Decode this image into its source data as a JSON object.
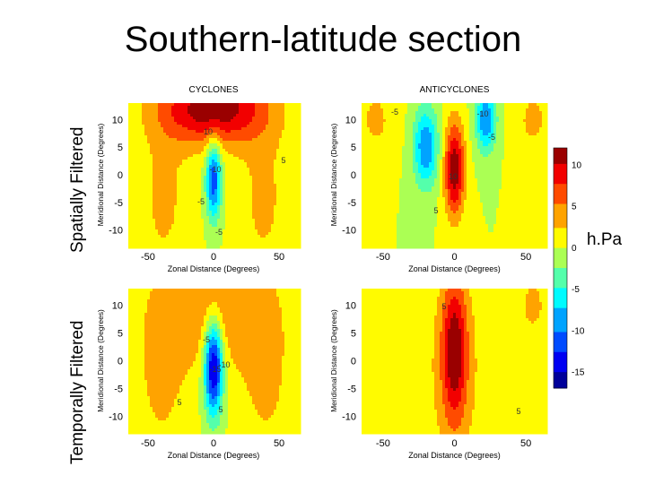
{
  "slide": {
    "title": "Southern-latitude section",
    "row_labels": [
      "Spatially Filtered",
      "Temporally Filtered"
    ],
    "unit": "h.Pa"
  },
  "chart_data": {
    "type": "heatmap",
    "title": "Southern-latitude section",
    "colorbar": {
      "ticks": [
        10,
        5,
        0,
        -5,
        -10,
        -15
      ],
      "range": [
        -17,
        12
      ],
      "colormap": "jet",
      "label": "h.Pa"
    },
    "panels": [
      {
        "row": "Spatially Filtered",
        "title": "CYCLONES",
        "xlabel": "Zonal Distance (Degrees)",
        "ylabel": "Meridional Distance (Degrees)",
        "xticks": [
          -50,
          0,
          50
        ],
        "yticks": [
          10,
          5,
          0,
          -5,
          -10
        ],
        "xlim": [
          -65,
          65
        ],
        "ylim": [
          -13,
          13
        ],
        "contour_labels": [
          "10",
          "-10",
          "-5",
          "5",
          "-5"
        ],
        "features": [
          {
            "x": 0,
            "y": -1,
            "amp": -12,
            "sx": 4,
            "sy": 5
          },
          {
            "x": 0,
            "y": 12,
            "amp": 12,
            "sx": 28,
            "sy": 4.5
          },
          {
            "x": -38,
            "y": -4,
            "amp": 3,
            "sx": 15,
            "sy": 12
          },
          {
            "x": 38,
            "y": -4,
            "amp": 3,
            "sx": 15,
            "sy": 12
          }
        ]
      },
      {
        "row": "Spatially Filtered",
        "title": "ANTICYCLONES",
        "xlabel": "Zonal Distance (Degrees)",
        "ylabel": "Meridional Distance (Degrees)",
        "xticks": [
          -50,
          0,
          50
        ],
        "yticks": [
          10,
          5,
          0,
          -5,
          -10
        ],
        "xlim": [
          -65,
          65
        ],
        "ylim": [
          -13,
          13
        ],
        "contour_labels": [
          "10",
          "-5",
          "-10",
          "-5",
          "5"
        ],
        "features": [
          {
            "x": 0,
            "y": 1,
            "amp": 12,
            "sx": 5,
            "sy": 6
          },
          {
            "x": -20,
            "y": 5,
            "amp": -10,
            "sx": 6,
            "sy": 5
          },
          {
            "x": 22,
            "y": 10,
            "amp": -10,
            "sx": 5,
            "sy": 4
          },
          {
            "x": -55,
            "y": 10,
            "amp": 3,
            "sx": 10,
            "sy": 5
          },
          {
            "x": 55,
            "y": 10,
            "amp": 3,
            "sx": 10,
            "sy": 5
          }
        ]
      },
      {
        "row": "Temporally Filtered",
        "title": "",
        "xlabel": "Zonal Distance (Degrees)",
        "ylabel": "Meridional Distance (Degrees)",
        "xticks": [
          -50,
          0,
          50
        ],
        "yticks": [
          10,
          5,
          0,
          -5,
          -10
        ],
        "xlim": [
          -65,
          65
        ],
        "ylim": [
          -13,
          13
        ],
        "contour_labels": [
          "-5",
          "-15",
          "-10",
          "5",
          "5"
        ],
        "features": [
          {
            "x": 0,
            "y": -1,
            "amp": -17,
            "sx": 5,
            "sy": 6
          },
          {
            "x": 0,
            "y": 10,
            "amp": 5,
            "sx": 30,
            "sy": 8
          },
          {
            "x": -40,
            "y": -3,
            "amp": 3,
            "sx": 15,
            "sy": 12
          },
          {
            "x": 40,
            "y": -3,
            "amp": 3,
            "sx": 15,
            "sy": 12
          }
        ]
      },
      {
        "row": "Temporally Filtered",
        "title": "",
        "xlabel": "Zonal Distance (Degrees)",
        "ylabel": "Meridional Distance (Degrees)",
        "xticks": [
          -50,
          0,
          50
        ],
        "yticks": [
          10,
          5,
          0,
          -5,
          -10
        ],
        "xlim": [
          -65,
          65
        ],
        "ylim": [
          -13,
          13
        ],
        "contour_labels": [
          "5",
          "5"
        ],
        "features": [
          {
            "x": 0,
            "y": 2,
            "amp": 10,
            "sx": 6,
            "sy": 9
          },
          {
            "x": 0,
            "y": -2,
            "amp": 3,
            "sx": 18,
            "sy": 14
          },
          {
            "x": 55,
            "y": 10,
            "amp": 3,
            "sx": 9,
            "sy": 5
          }
        ]
      }
    ]
  }
}
